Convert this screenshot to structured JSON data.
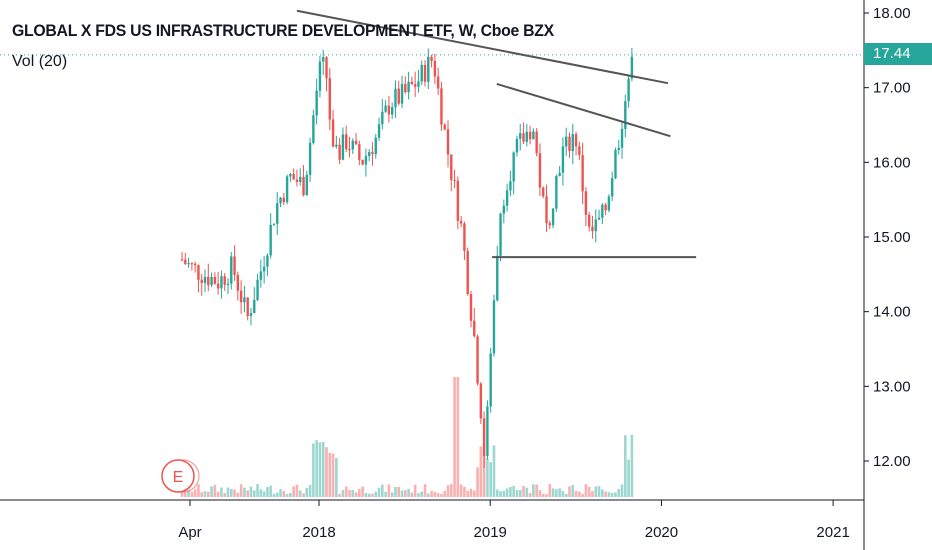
{
  "chart_data": {
    "type": "candlestick",
    "title": "GLOBAL X FDS US INFRASTRUCTURE DEVELOPMENT ETF, W, Cboe BZX",
    "indicator": "Vol (20)",
    "last_price": "17.44",
    "ylim": [
      11.55,
      18.15
    ],
    "y_ticks": [
      "18.00",
      "17.00",
      "16.00",
      "15.00",
      "14.00",
      "13.00",
      "12.00"
    ],
    "x_ticks": [
      "Apr",
      "2018",
      "2019",
      "2020",
      "2021"
    ],
    "earnings_marker": "E",
    "colors": {
      "up": "#26a69a",
      "down": "#ef5350",
      "trendline": "#555555",
      "price_line": "#26a69a"
    },
    "series": [
      {
        "price_segments": [
          {
            "x": [
              "2017-03-15",
              "2017-04-01",
              "2017-05-01",
              "2017-06-01",
              "2017-07-01",
              "2017-07-15",
              "2017-08-01",
              "2017-09-01",
              "2017-10-01",
              "2017-11-01",
              "2017-12-01",
              "2018-01-01",
              "2018-01-15",
              "2018-02-01",
              "2018-03-01",
              "2018-04-01",
              "2018-05-01",
              "2018-06-01",
              "2018-07-01",
              "2018-08-01",
              "2018-09-01",
              "2018-10-01",
              "2018-11-01",
              "2018-12-01",
              "2018-12-20",
              "2019-01-15",
              "2019-02-01",
              "2019-03-01",
              "2019-04-01",
              "2019-05-01",
              "2019-06-01",
              "2019-07-01",
              "2019-08-01",
              "2019-09-01",
              "2019-10-01",
              "2019-10-20",
              "2019-11-01"
            ],
            "y": [
              14.7,
              14.6,
              14.5,
              14.4,
              14.6,
              14.3,
              13.9,
              14.6,
              15.4,
              15.8,
              15.7,
              17.2,
              17.3,
              16.0,
              16.3,
              16.0,
              16.3,
              16.8,
              16.9,
              17.1,
              17.4,
              16.2,
              15.1,
              13.5,
              12.0,
              14.8,
              15.7,
              16.2,
              16.5,
              15.1,
              16.1,
              16.4,
              15.0,
              15.3,
              16.3,
              17.0,
              17.44
            ]
          }
        ],
        "volume_approx": [
          {
            "x": "2017-04-01",
            "v": 0.15
          },
          {
            "x": "2017-10-01",
            "v": 0.1
          },
          {
            "x": "2018-01-01",
            "v": 0.6
          },
          {
            "x": "2018-02-01",
            "v": 0.45
          },
          {
            "x": "2018-09-01",
            "v": 0.35
          },
          {
            "x": "2018-10-15",
            "v": 1.0
          },
          {
            "x": "2018-12-20",
            "v": 0.45
          },
          {
            "x": "2019-10-20",
            "v": 0.7
          }
        ]
      }
    ],
    "annotations": [
      {
        "type": "descending-trendline",
        "from": [
          "2017-11-15",
          18.03
        ],
        "to": [
          "2020-01-15",
          17.06
        ]
      },
      {
        "type": "descending-trendline",
        "from": [
          "2019-01-15",
          17.05
        ],
        "to": [
          "2020-01-20",
          16.35
        ]
      },
      {
        "type": "support-line",
        "from": [
          "2019-01-05",
          14.73
        ],
        "to": [
          "2020-03-15",
          14.73
        ]
      }
    ]
  }
}
